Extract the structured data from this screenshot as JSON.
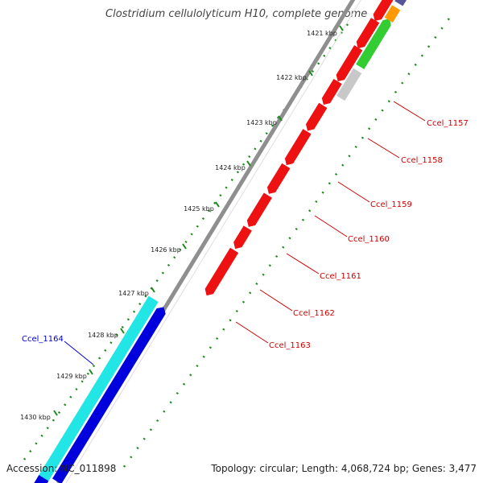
{
  "title": "Clostridium cellulolyticum H10, complete genome",
  "footer": {
    "accession": "Accession: NC_011898",
    "summary": "Topology: circular; Length: 4,068,724 bp; Genes: 3,477"
  },
  "colors": {
    "backbone": "#8f8f8f",
    "gc_dots": "#1a8a1a",
    "red_gene": "#ee1111",
    "cyan_gene": "#22e5e5",
    "blue_gene": "#0000dd",
    "green_gene": "#33cc33",
    "orange_gene": "#ff9900",
    "slate_gene": "#55559a",
    "grey_gene": "#c8c8c8",
    "label_red": "#cc0000",
    "label_blue": "#0000cc"
  },
  "ticks": [
    "1421 kbp",
    "1422 kbp",
    "1423 kbp",
    "1424 kbp",
    "1425 kbp",
    "1426 kbp",
    "1427 kbp",
    "1428 kbp",
    "1429 kbp",
    "1430 kbp"
  ],
  "gene_labels": [
    {
      "text": "Ccel_1157",
      "color": "label_red"
    },
    {
      "text": "Ccel_1158",
      "color": "label_red"
    },
    {
      "text": "Ccel_1159",
      "color": "label_red"
    },
    {
      "text": "Ccel_1160",
      "color": "label_red"
    },
    {
      "text": "Ccel_1161",
      "color": "label_red"
    },
    {
      "text": "Ccel_1162",
      "color": "label_red"
    },
    {
      "text": "Ccel_1163",
      "color": "label_red"
    },
    {
      "text": "Ccel_1164",
      "color": "label_blue"
    }
  ]
}
